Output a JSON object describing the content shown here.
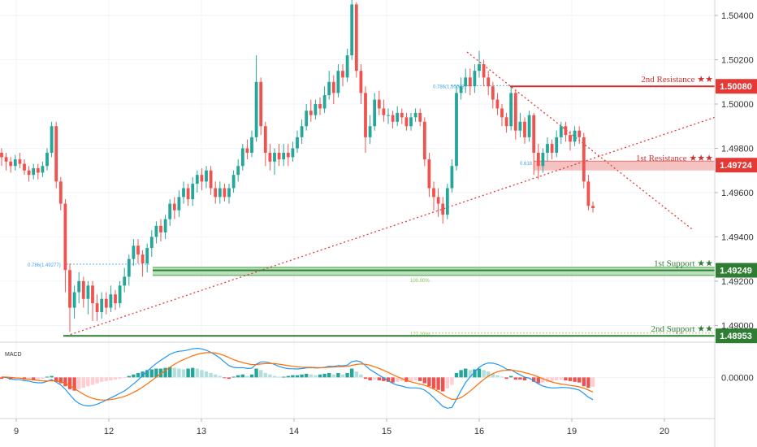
{
  "chart_data": {
    "type": "candlestick",
    "price_axis": {
      "ticks": [
        1.504,
        1.502,
        1.5,
        1.498,
        1.496,
        1.494,
        1.492,
        1.49
      ],
      "tick_labels": [
        "1.50400",
        "1.50200",
        "1.50000",
        "1.49800",
        "1.49600",
        "1.49400",
        "1.49200",
        "1.49000"
      ],
      "ylim": [
        1.48928,
        1.5047
      ]
    },
    "time_axis": {
      "ticks": [
        9,
        12,
        13,
        14,
        15,
        16,
        19,
        20
      ],
      "tick_labels": [
        "9",
        "12",
        "13",
        "14",
        "15",
        "16",
        "19",
        "20"
      ]
    },
    "levels": [
      {
        "label": "2nd Resistance ★★",
        "value": 1.5008,
        "value_label": "1.50080",
        "kind": "resistance",
        "color": "#d32f2f"
      },
      {
        "label": "1st Resistance ★★★",
        "value": 1.49724,
        "value_label": "1.49724",
        "kind": "resistance",
        "color": "#d32f2f"
      },
      {
        "label": "1st Support ★★",
        "value": 1.49249,
        "value_label": "1.49249",
        "kind": "support",
        "color": "#2e7d32"
      },
      {
        "label": "2nd Support ★★",
        "value": 1.48953,
        "value_label": "1.48953",
        "kind": "support",
        "color": "#2e7d32"
      }
    ],
    "fib_labels": [
      {
        "text": "0.786(1.49277)"
      },
      {
        "text": "0.786(1.50083)"
      },
      {
        "text": "0.618"
      },
      {
        "text": "100.00%"
      },
      {
        "text": "127.20%"
      }
    ],
    "candles": [
      [
        1.4978,
        1.4976,
        1.498,
        1.4972
      ],
      [
        1.4976,
        1.4974,
        1.4978,
        1.497
      ],
      [
        1.4974,
        1.4972,
        1.4976,
        1.4969
      ],
      [
        1.4972,
        1.4975,
        1.4977,
        1.497
      ],
      [
        1.4975,
        1.4973,
        1.4978,
        1.4971
      ],
      [
        1.4973,
        1.497,
        1.4975,
        1.4968
      ],
      [
        1.497,
        1.4968,
        1.4972,
        1.4965
      ],
      [
        1.4968,
        1.4971,
        1.4973,
        1.4966
      ],
      [
        1.4971,
        1.4969,
        1.4973,
        1.4966
      ],
      [
        1.4969,
        1.4972,
        1.4974,
        1.4967
      ],
      [
        1.4972,
        1.4978,
        1.498,
        1.497
      ],
      [
        1.4978,
        1.499,
        1.4992,
        1.4976
      ],
      [
        1.499,
        1.4965,
        1.4992,
        1.4962
      ],
      [
        1.4965,
        1.4955,
        1.4967,
        1.4952
      ],
      [
        1.4955,
        1.4925,
        1.4957,
        1.4915
      ],
      [
        1.4925,
        1.4908,
        1.4928,
        1.4897
      ],
      [
        1.4908,
        1.4915,
        1.4918,
        1.4903
      ],
      [
        1.4915,
        1.492,
        1.4924,
        1.491
      ],
      [
        1.492,
        1.4912,
        1.4922,
        1.4908
      ],
      [
        1.4912,
        1.4918,
        1.492,
        1.4905
      ],
      [
        1.4918,
        1.491,
        1.492,
        1.4902
      ],
      [
        1.491,
        1.4906,
        1.4914,
        1.4902
      ],
      [
        1.4906,
        1.4912,
        1.4915,
        1.4903
      ],
      [
        1.4912,
        1.4908,
        1.4915,
        1.4905
      ],
      [
        1.4908,
        1.4914,
        1.4918,
        1.4906
      ],
      [
        1.4914,
        1.491,
        1.4916,
        1.4907
      ],
      [
        1.491,
        1.4918,
        1.492,
        1.4908
      ],
      [
        1.4918,
        1.4922,
        1.4926,
        1.4915
      ],
      [
        1.4922,
        1.493,
        1.4932,
        1.4918
      ],
      [
        1.493,
        1.4936,
        1.4939,
        1.4927
      ],
      [
        1.4936,
        1.4932,
        1.4939,
        1.4928
      ],
      [
        1.4932,
        1.4928,
        1.4934,
        1.4922
      ],
      [
        1.4928,
        1.4935,
        1.4937,
        1.4924
      ],
      [
        1.4935,
        1.494,
        1.4943,
        1.4931
      ],
      [
        1.494,
        1.4945,
        1.4947,
        1.4937
      ],
      [
        1.4945,
        1.4942,
        1.4948,
        1.4938
      ],
      [
        1.4942,
        1.4948,
        1.495,
        1.4939
      ],
      [
        1.4948,
        1.4955,
        1.4957,
        1.4945
      ],
      [
        1.4955,
        1.4952,
        1.4958,
        1.4948
      ],
      [
        1.4952,
        1.4958,
        1.4961,
        1.4949
      ],
      [
        1.4958,
        1.4962,
        1.4965,
        1.4955
      ],
      [
        1.4962,
        1.4957,
        1.4964,
        1.4954
      ],
      [
        1.4957,
        1.4964,
        1.4967,
        1.4954
      ],
      [
        1.4964,
        1.4968,
        1.497,
        1.496
      ],
      [
        1.4968,
        1.4965,
        1.4971,
        1.4961
      ],
      [
        1.4965,
        1.497,
        1.4972,
        1.4962
      ],
      [
        1.497,
        1.4962,
        1.4972,
        1.4959
      ],
      [
        1.4962,
        1.4958,
        1.4965,
        1.4955
      ],
      [
        1.4958,
        1.4962,
        1.4965,
        1.4955
      ],
      [
        1.4962,
        1.4958,
        1.4964,
        1.4956
      ],
      [
        1.4958,
        1.4962,
        1.4964,
        1.4955
      ],
      [
        1.4962,
        1.4968,
        1.497,
        1.496
      ],
      [
        1.4968,
        1.4972,
        1.4975,
        1.4965
      ],
      [
        1.4972,
        1.498,
        1.4982,
        1.497
      ],
      [
        1.498,
        1.4978,
        1.4984,
        1.4975
      ],
      [
        1.4978,
        1.4985,
        1.4988,
        1.4976
      ],
      [
        1.4985,
        1.501,
        1.5022,
        1.4983
      ],
      [
        1.501,
        1.499,
        1.5012,
        1.4986
      ],
      [
        1.499,
        1.4978,
        1.4992,
        1.4972
      ],
      [
        1.4978,
        1.4974,
        1.4982,
        1.497
      ],
      [
        1.4974,
        1.4978,
        1.498,
        1.4968
      ],
      [
        1.4978,
        1.4975,
        1.4982,
        1.4972
      ],
      [
        1.4975,
        1.4978,
        1.4982,
        1.4972
      ],
      [
        1.4978,
        1.4976,
        1.4982,
        1.4972
      ],
      [
        1.4976,
        1.498,
        1.4983,
        1.4974
      ],
      [
        1.498,
        1.4985,
        1.4988,
        1.4978
      ],
      [
        1.4985,
        1.499,
        1.4993,
        1.4982
      ],
      [
        1.499,
        1.4997,
        1.5,
        1.4988
      ],
      [
        1.4997,
        1.4995,
        1.5002,
        1.4992
      ],
      [
        1.4995,
        1.5,
        1.5002,
        1.4993
      ],
      [
        1.5,
        1.4998,
        1.5003,
        1.4995
      ],
      [
        1.4998,
        1.5004,
        1.5008,
        1.4996
      ],
      [
        1.5004,
        1.501,
        1.5015,
        1.5002
      ],
      [
        1.501,
        1.5005,
        1.5013,
        1.5
      ],
      [
        1.5005,
        1.5015,
        1.5018,
        1.5003
      ],
      [
        1.5015,
        1.5012,
        1.5018,
        1.5008
      ],
      [
        1.5012,
        1.5022,
        1.5025,
        1.501
      ],
      [
        1.5022,
        1.5045,
        1.5047,
        1.502
      ],
      [
        1.5045,
        1.5015,
        1.5046,
        1.5012
      ],
      [
        1.5015,
        1.5005,
        1.5018,
        1.5
      ],
      [
        1.5005,
        1.4985,
        1.5008,
        1.4978
      ],
      [
        1.4985,
        1.499,
        1.4995,
        1.4982
      ],
      [
        1.499,
        1.5002,
        1.5005,
        1.4988
      ],
      [
        1.5002,
        1.4998,
        1.5006,
        1.4995
      ],
      [
        1.4998,
        1.4995,
        1.5002,
        1.4992
      ],
      [
        1.4995,
        1.4995,
        1.4998,
        1.4991
      ],
      [
        1.4995,
        1.4992,
        1.4997,
        1.4989
      ],
      [
        1.4992,
        1.4996,
        1.4999,
        1.499
      ],
      [
        1.4996,
        1.4994,
        1.4998,
        1.4991
      ],
      [
        1.4994,
        1.499,
        1.4996,
        1.4988
      ],
      [
        1.499,
        1.4994,
        1.4996,
        1.4988
      ],
      [
        1.4994,
        1.4996,
        1.4998,
        1.4992
      ],
      [
        1.4996,
        1.4992,
        1.4998,
        1.499
      ],
      [
        1.4992,
        1.4975,
        1.4994,
        1.4972
      ],
      [
        1.4975,
        1.4962,
        1.4978,
        1.4958
      ],
      [
        1.4962,
        1.4958,
        1.4965,
        1.4952
      ],
      [
        1.4958,
        1.4955,
        1.4962,
        1.4949
      ],
      [
        1.4955,
        1.495,
        1.4958,
        1.4946
      ],
      [
        1.495,
        1.4962,
        1.4964,
        1.4948
      ],
      [
        1.4962,
        1.4972,
        1.4975,
        1.496
      ],
      [
        1.4972,
        1.5005,
        1.5008,
        1.497
      ],
      [
        1.5005,
        1.5008,
        1.5012,
        1.5002
      ],
      [
        1.5008,
        1.5012,
        1.5016,
        1.5005
      ],
      [
        1.5012,
        1.5008,
        1.5016,
        1.5004
      ],
      [
        1.5008,
        1.5015,
        1.5018,
        1.5005
      ],
      [
        1.5015,
        1.5018,
        1.5024,
        1.5012
      ],
      [
        1.5018,
        1.5012,
        1.502,
        1.5008
      ],
      [
        1.5012,
        1.5008,
        1.5015,
        1.5004
      ],
      [
        1.5008,
        1.5002,
        1.501,
        1.4998
      ],
      [
        1.5002,
        1.4998,
        1.5005,
        1.4995
      ],
      [
        1.4998,
        1.4994,
        1.5,
        1.499
      ],
      [
        1.4994,
        1.499,
        1.4996,
        1.4987
      ],
      [
        1.499,
        1.5005,
        1.5008,
        1.4988
      ],
      [
        1.5005,
        1.4988,
        1.5006,
        1.4984
      ],
      [
        1.4988,
        1.4992,
        1.4996,
        1.4985
      ],
      [
        1.4992,
        1.4985,
        1.4994,
        1.4982
      ],
      [
        1.4985,
        1.4995,
        1.4997,
        1.4983
      ],
      [
        1.4995,
        1.4978,
        1.4996,
        1.4968
      ],
      [
        1.4978,
        1.4972,
        1.4982,
        1.4966
      ],
      [
        1.4972,
        1.4978,
        1.498,
        1.4969
      ],
      [
        1.4978,
        1.4982,
        1.4985,
        1.4974
      ],
      [
        1.4982,
        1.4978,
        1.4984,
        1.4975
      ],
      [
        1.4978,
        1.4985,
        1.4988,
        1.4976
      ],
      [
        1.4985,
        1.499,
        1.4992,
        1.4982
      ],
      [
        1.499,
        1.4986,
        1.4992,
        1.4983
      ],
      [
        1.4986,
        1.4983,
        1.4988,
        1.4979
      ],
      [
        1.4983,
        1.4988,
        1.499,
        1.4981
      ],
      [
        1.4988,
        1.4985,
        1.499,
        1.4982
      ],
      [
        1.4985,
        1.4965,
        1.4987,
        1.4962
      ],
      [
        1.4965,
        1.4954,
        1.4968,
        1.4952
      ],
      [
        1.4954,
        1.4953,
        1.4956,
        1.4951
      ]
    ],
    "macd": {
      "label": "MACD",
      "ticks": [
        0.0
      ],
      "tick_labels": [
        "0.00000"
      ],
      "ylim": [
        -0.00056,
        0.00048
      ],
      "histogram": [
        -2e-05,
        -1e-05,
        -3e-05,
        -2e-05,
        -1e-05,
        -3e-05,
        -2e-05,
        -4e-05,
        -3e-05,
        -2e-05,
        1e-05,
        2e-05,
        -6e-05,
        -8e-05,
        -0.00012,
        -0.00016,
        -0.00018,
        -0.00016,
        -0.00014,
        -0.00012,
        -0.0001,
        -8e-05,
        -6e-05,
        -5e-05,
        -4e-05,
        -3e-05,
        -2e-05,
        -1e-05,
        2e-05,
        4e-05,
        6e-05,
        8e-05,
        0.0001,
        0.00011,
        0.00012,
        0.00012,
        0.00013,
        0.00014,
        0.00013,
        0.00012,
        0.00011,
        0.00012,
        0.00013,
        0.00012,
        0.0001,
        8e-05,
        6e-05,
        4e-05,
        2e-05,
        -1e-05,
        -2e-05,
        1e-05,
        3e-05,
        4e-05,
        2e-05,
        4e-05,
        0.00012,
        0.0001,
        6e-05,
        4e-05,
        2e-05,
        1e-05,
        1e-05,
        2e-05,
        3e-05,
        3e-05,
        4e-05,
        5e-05,
        4e-05,
        3e-05,
        4e-05,
        5e-05,
        6e-05,
        4e-05,
        6e-05,
        4e-05,
        6e-05,
        0.00012,
        8e-05,
        4e-05,
        -2e-05,
        -4e-05,
        -3e-05,
        -4e-05,
        -5e-05,
        -6e-05,
        -7e-05,
        -6e-05,
        -5e-05,
        -6e-05,
        -5e-05,
        -4e-05,
        -5e-05,
        -8e-05,
        -0.00012,
        -0.00015,
        -0.00017,
        -0.00019,
        -0.00015,
        -0.0001,
        6e-05,
        0.0001,
        0.00012,
        0.0001,
        0.00011,
        0.00012,
        0.0001,
        8e-05,
        5e-05,
        3e-05,
        1e-05,
        -2e-05,
        2e-05,
        -3e-05,
        -3e-05,
        -4e-05,
        -2e-05,
        -6e-05,
        -8e-05,
        -7e-05,
        -6e-05,
        -5e-05,
        -4e-05,
        -3e-05,
        -4e-05,
        -5e-05,
        -6e-05,
        -7e-05,
        -0.00012,
        -0.00014,
        -0.00013
      ]
    },
    "colors": {
      "up": "#26a69a",
      "down": "#ef5350",
      "macd_line": "#2196f3",
      "signal_line": "#ff6d00",
      "hist_up": "#26a69a",
      "hist_down": "#ef5350"
    }
  }
}
